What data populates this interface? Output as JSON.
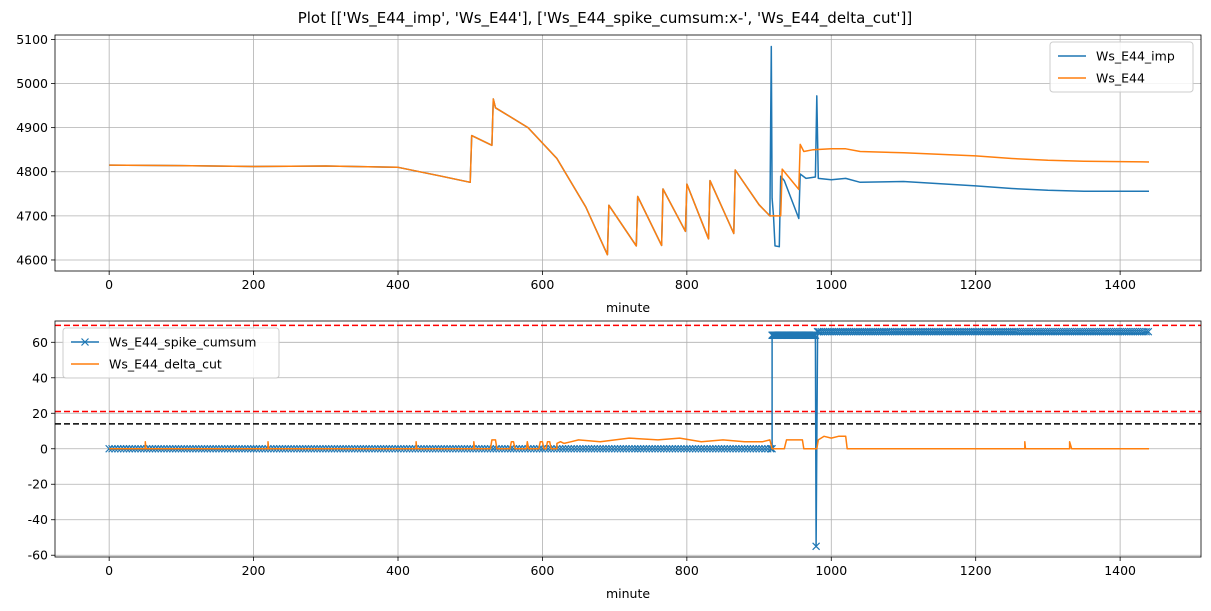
{
  "figure": {
    "title": "Plot [['Ws_E44_imp', 'Ws_E44'], ['Ws_E44_spike_cumsum:x-', 'Ws_E44_delta_cut']]"
  },
  "chart_data": [
    {
      "type": "line",
      "xlabel": "minute",
      "ylabel": "",
      "xlim": [
        -75,
        1512
      ],
      "ylim": [
        4575,
        5110
      ],
      "xticks": [
        0,
        200,
        400,
        600,
        800,
        1000,
        1200,
        1400
      ],
      "yticks": [
        4600,
        4700,
        4800,
        4900,
        5000,
        5100
      ],
      "grid": true,
      "legend": "top-right",
      "series": [
        {
          "name": "Ws_E44_imp",
          "color": "#1f77b4",
          "points": [
            [
              0,
              4815
            ],
            [
              100,
              4814
            ],
            [
              200,
              4812
            ],
            [
              300,
              4813
            ],
            [
              400,
              4810
            ],
            [
              460,
              4790
            ],
            [
              500,
              4776
            ],
            [
              502,
              4882
            ],
            [
              530,
              4860
            ],
            [
              532,
              4965
            ],
            [
              535,
              4945
            ],
            [
              580,
              4900
            ],
            [
              620,
              4830
            ],
            [
              660,
              4720
            ],
            [
              690,
              4612
            ],
            [
              692,
              4724
            ],
            [
              730,
              4632
            ],
            [
              732,
              4744
            ],
            [
              765,
              4633
            ],
            [
              767,
              4761
            ],
            [
              798,
              4665
            ],
            [
              800,
              4772
            ],
            [
              830,
              4648
            ],
            [
              832,
              4780
            ],
            [
              865,
              4660
            ],
            [
              867,
              4804
            ],
            [
              900,
              4725
            ],
            [
              915,
              4700
            ],
            [
              917,
              5084
            ],
            [
              918,
              4740
            ],
            [
              920,
              4700
            ],
            [
              922,
              4632
            ],
            [
              928,
              4630
            ],
            [
              930,
              4790
            ],
            [
              935,
              4780
            ],
            [
              955,
              4694
            ],
            [
              957,
              4795
            ],
            [
              965,
              4785
            ],
            [
              978,
              4788
            ],
            [
              980,
              4972
            ],
            [
              982,
              4785
            ],
            [
              1000,
              4782
            ],
            [
              1020,
              4785
            ],
            [
              1040,
              4776
            ],
            [
              1100,
              4778
            ],
            [
              1200,
              4768
            ],
            [
              1250,
              4762
            ],
            [
              1300,
              4758
            ],
            [
              1350,
              4756
            ],
            [
              1400,
              4756
            ],
            [
              1440,
              4756
            ]
          ]
        },
        {
          "name": "Ws_E44",
          "color": "#ff7f0e",
          "points": [
            [
              0,
              4815
            ],
            [
              100,
              4814
            ],
            [
              200,
              4812
            ],
            [
              300,
              4813
            ],
            [
              400,
              4810
            ],
            [
              460,
              4790
            ],
            [
              500,
              4776
            ],
            [
              502,
              4882
            ],
            [
              530,
              4860
            ],
            [
              532,
              4965
            ],
            [
              535,
              4945
            ],
            [
              580,
              4900
            ],
            [
              620,
              4830
            ],
            [
              660,
              4720
            ],
            [
              690,
              4612
            ],
            [
              692,
              4724
            ],
            [
              730,
              4632
            ],
            [
              732,
              4744
            ],
            [
              765,
              4633
            ],
            [
              767,
              4761
            ],
            [
              798,
              4665
            ],
            [
              800,
              4772
            ],
            [
              830,
              4648
            ],
            [
              832,
              4780
            ],
            [
              865,
              4660
            ],
            [
              867,
              4804
            ],
            [
              900,
              4725
            ],
            [
              915,
              4700
            ],
            [
              930,
              4700
            ],
            [
              932,
              4806
            ],
            [
              955,
              4760
            ],
            [
              957,
              4862
            ],
            [
              962,
              4846
            ],
            [
              975,
              4850
            ],
            [
              1000,
              4852
            ],
            [
              1020,
              4852
            ],
            [
              1040,
              4846
            ],
            [
              1100,
              4843
            ],
            [
              1200,
              4836
            ],
            [
              1250,
              4830
            ],
            [
              1300,
              4826
            ],
            [
              1350,
              4824
            ],
            [
              1400,
              4823
            ],
            [
              1440,
              4822
            ]
          ]
        }
      ]
    },
    {
      "type": "line",
      "xlabel": "minute",
      "ylabel": "",
      "xlim": [
        -75,
        1512
      ],
      "ylim": [
        -61,
        72
      ],
      "xticks": [
        0,
        200,
        400,
        600,
        800,
        1000,
        1200,
        1400
      ],
      "yticks": [
        -60,
        -40,
        -20,
        0,
        20,
        40,
        60
      ],
      "grid": true,
      "legend": "top-left",
      "hlines": [
        {
          "y": 69.5,
          "color": "#ff0000",
          "style": "dashed"
        },
        {
          "y": 21,
          "color": "#ff0000",
          "style": "dashed"
        },
        {
          "y": 14,
          "color": "#000000",
          "style": "dashed"
        }
      ],
      "series": [
        {
          "name": "Ws_E44_spike_cumsum",
          "color": "#1f77b4",
          "marker": "x",
          "segments": [
            {
              "x0": 0,
              "x1": 918,
              "y": 0,
              "step": 4
            },
            {
              "x0": 918,
              "x1": 978,
              "y": 64,
              "step": 1.5
            },
            {
              "x0": 983,
              "x1": 1440,
              "y": 66,
              "step": 3
            }
          ],
          "points": [
            [
              918,
              0
            ],
            [
              918,
              64
            ],
            [
              978,
              64
            ],
            [
              979,
              -55
            ],
            [
              981,
              66
            ],
            [
              983,
              66
            ]
          ]
        },
        {
          "name": "Ws_E44_delta_cut",
          "color": "#ff7f0e",
          "points": [
            [
              0,
              0
            ],
            [
              50,
              0
            ],
            [
              50,
              4
            ],
            [
              51,
              0
            ],
            [
              220,
              0
            ],
            [
              220,
              4
            ],
            [
              221,
              0
            ],
            [
              425,
              0
            ],
            [
              425,
              4
            ],
            [
              426,
              0
            ],
            [
              505,
              0
            ],
            [
              505,
              4
            ],
            [
              506,
              0
            ],
            [
              528,
              0
            ],
            [
              530,
              5
            ],
            [
              535,
              5
            ],
            [
              537,
              0
            ],
            [
              555,
              0
            ],
            [
              557,
              4
            ],
            [
              560,
              4
            ],
            [
              562,
              0
            ],
            [
              578,
              0
            ],
            [
              579,
              4
            ],
            [
              581,
              0
            ],
            [
              595,
              0
            ],
            [
              597,
              4
            ],
            [
              600,
              4
            ],
            [
              602,
              0
            ],
            [
              605,
              0
            ],
            [
              607,
              4
            ],
            [
              610,
              4
            ],
            [
              612,
              0
            ],
            [
              620,
              0
            ],
            [
              620,
              3
            ],
            [
              625,
              4
            ],
            [
              630,
              3
            ],
            [
              640,
              4
            ],
            [
              650,
              5
            ],
            [
              680,
              4
            ],
            [
              720,
              6
            ],
            [
              760,
              5
            ],
            [
              790,
              6
            ],
            [
              820,
              4
            ],
            [
              850,
              5
            ],
            [
              880,
              4
            ],
            [
              905,
              4
            ],
            [
              915,
              5
            ],
            [
              918,
              0
            ],
            [
              935,
              0
            ],
            [
              938,
              5
            ],
            [
              960,
              5
            ],
            [
              962,
              0
            ],
            [
              980,
              0
            ],
            [
              982,
              5
            ],
            [
              990,
              7
            ],
            [
              1000,
              6
            ],
            [
              1010,
              7
            ],
            [
              1020,
              7
            ],
            [
              1022,
              0
            ],
            [
              1100,
              0
            ],
            [
              1268,
              0
            ],
            [
              1268,
              4
            ],
            [
              1269,
              0
            ],
            [
              1330,
              0
            ],
            [
              1330,
              4
            ],
            [
              1333,
              0
            ],
            [
              1440,
              0
            ]
          ]
        }
      ]
    }
  ]
}
